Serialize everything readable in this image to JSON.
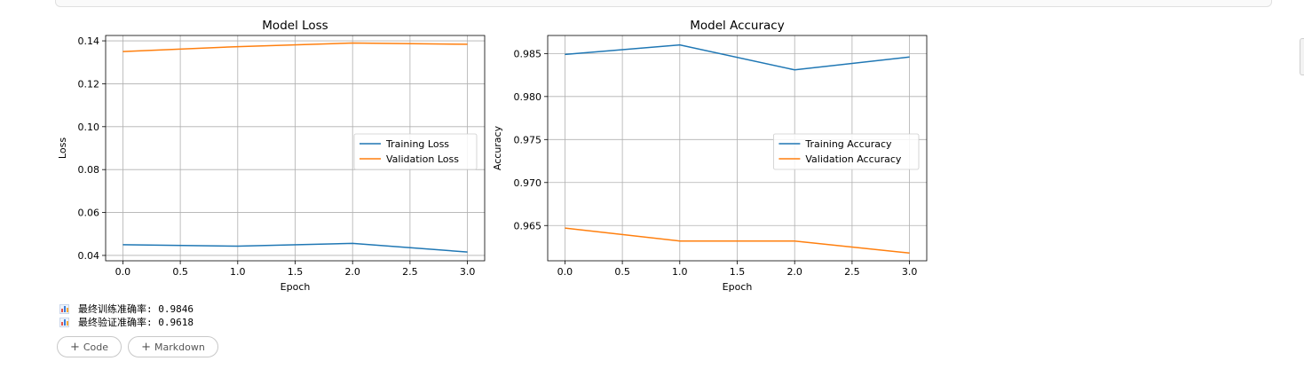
{
  "outputs": [
    {
      "icon": "bar-chart-icon",
      "text": "最终训练准确率: 0.9846"
    },
    {
      "icon": "bar-chart-icon",
      "text": "最终验证准确率: 0.9618"
    }
  ],
  "buttons": {
    "add_code": "Code",
    "add_markdown": "Markdown"
  },
  "colors": {
    "training": "#1f77b4",
    "validation": "#ff7f0e"
  },
  "chart_data": [
    {
      "type": "line",
      "title": "Model Loss",
      "xlabel": "Epoch",
      "ylabel": "Loss",
      "xlim": [
        -0.15,
        3.15
      ],
      "ylim": [
        0.0375,
        0.1425
      ],
      "xticks": [
        0.0,
        0.5,
        1.0,
        1.5,
        2.0,
        2.5,
        3.0
      ],
      "yticks": [
        0.04,
        0.06,
        0.08,
        0.1,
        0.12,
        0.14
      ],
      "grid": true,
      "legend": "center-right",
      "x": [
        0,
        1,
        2,
        3
      ],
      "series": [
        {
          "name": "Training Loss",
          "color": "#1f77b4",
          "values": [
            0.045,
            0.0443,
            0.0456,
            0.0416
          ]
        },
        {
          "name": "Validation Loss",
          "color": "#ff7f0e",
          "values": [
            0.135,
            0.1373,
            0.139,
            0.1384
          ]
        }
      ]
    },
    {
      "type": "line",
      "title": "Model Accuracy",
      "xlabel": "Epoch",
      "ylabel": "Accuracy",
      "xlim": [
        -0.15,
        3.15
      ],
      "ylim": [
        0.9609,
        0.9871
      ],
      "xticks": [
        0.0,
        0.5,
        1.0,
        1.5,
        2.0,
        2.5,
        3.0
      ],
      "yticks": [
        0.965,
        0.97,
        0.975,
        0.98,
        0.985
      ],
      "grid": true,
      "legend": "center-right",
      "x": [
        0,
        1,
        2,
        3
      ],
      "series": [
        {
          "name": "Training Accuracy",
          "color": "#1f77b4",
          "values": [
            0.9849,
            0.986,
            0.9831,
            0.9846
          ]
        },
        {
          "name": "Validation Accuracy",
          "color": "#ff7f0e",
          "values": [
            0.9647,
            0.9632,
            0.9632,
            0.9618
          ]
        }
      ]
    }
  ]
}
